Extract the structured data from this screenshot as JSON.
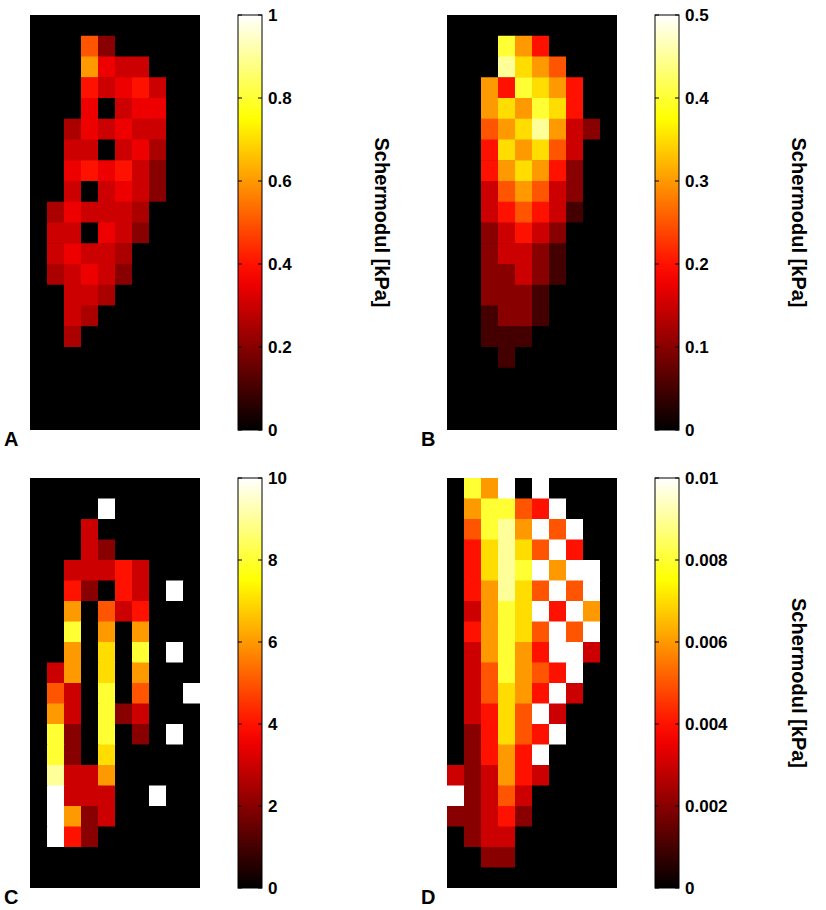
{
  "chart_data": [
    {
      "type": "heatmap",
      "title": "A",
      "colorbar_label": "Schermodul [kPa]",
      "tick_labels": false,
      "color_range": [
        0,
        1
      ],
      "color_ticks": [
        0,
        0.2,
        0.4,
        0.6,
        0.8,
        1
      ],
      "cells": [
        [
          0,
          0,
          0,
          0,
          0,
          0,
          0,
          0,
          0,
          0
        ],
        [
          0,
          0,
          0,
          0.5,
          0.2,
          0,
          0,
          0,
          0,
          0
        ],
        [
          0,
          0,
          0,
          0.6,
          0.35,
          0.3,
          0.3,
          0,
          0,
          0
        ],
        [
          0,
          0,
          0,
          0.4,
          0.3,
          0.35,
          0.4,
          0.3,
          0,
          0
        ],
        [
          0,
          0,
          0,
          0.35,
          0,
          0.3,
          0.35,
          0.35,
          0,
          0
        ],
        [
          0,
          0,
          0.25,
          0.35,
          0.3,
          0.35,
          0.3,
          0.3,
          0,
          0
        ],
        [
          0,
          0,
          0.3,
          0.3,
          0,
          0.3,
          0.35,
          0.25,
          0,
          0
        ],
        [
          0,
          0,
          0.35,
          0.4,
          0.35,
          0.4,
          0.3,
          0.2,
          0,
          0
        ],
        [
          0,
          0,
          0.3,
          0,
          0.3,
          0.35,
          0.3,
          0.2,
          0,
          0
        ],
        [
          0,
          0.25,
          0.35,
          0.3,
          0.3,
          0.3,
          0.25,
          0,
          0,
          0
        ],
        [
          0,
          0.3,
          0.3,
          0,
          0.35,
          0.3,
          0.2,
          0,
          0,
          0
        ],
        [
          0,
          0.3,
          0.35,
          0.3,
          0.3,
          0.25,
          0,
          0,
          0,
          0
        ],
        [
          0,
          0.25,
          0.3,
          0.35,
          0.3,
          0.2,
          0,
          0,
          0,
          0
        ],
        [
          0,
          0,
          0.3,
          0.3,
          0.25,
          0,
          0,
          0,
          0,
          0
        ],
        [
          0,
          0,
          0.3,
          0.25,
          0,
          0,
          0,
          0,
          0,
          0
        ],
        [
          0,
          0,
          0.25,
          0,
          0,
          0,
          0,
          0,
          0,
          0
        ],
        [
          0,
          0,
          0,
          0,
          0,
          0,
          0,
          0,
          0,
          0
        ],
        [
          0,
          0,
          0,
          0,
          0,
          0,
          0,
          0,
          0,
          0
        ],
        [
          0,
          0,
          0,
          0,
          0,
          0,
          0,
          0,
          0,
          0
        ],
        [
          0,
          0,
          0,
          0,
          0,
          0,
          0,
          0,
          0,
          0
        ]
      ]
    },
    {
      "type": "heatmap",
      "title": "B",
      "colorbar_label": "Schermodul [kPa]",
      "tick_labels": false,
      "color_range": [
        0,
        0.5
      ],
      "color_ticks": [
        0,
        0.1,
        0.2,
        0.3,
        0.4,
        0.5
      ],
      "cells": [
        [
          0,
          0,
          0,
          0,
          0,
          0,
          0,
          0,
          0,
          0
        ],
        [
          0,
          0,
          0,
          0.4,
          0.3,
          0.2,
          0,
          0,
          0,
          0
        ],
        [
          0,
          0,
          0,
          0.45,
          0.35,
          0.3,
          0.25,
          0,
          0,
          0
        ],
        [
          0,
          0,
          0.3,
          0.2,
          0.4,
          0.35,
          0.3,
          0.2,
          0,
          0
        ],
        [
          0,
          0,
          0.3,
          0.35,
          0.3,
          0.4,
          0.35,
          0.2,
          0,
          0
        ],
        [
          0,
          0,
          0.25,
          0.3,
          0.35,
          0.45,
          0.3,
          0.15,
          0.1,
          0
        ],
        [
          0,
          0,
          0.2,
          0.35,
          0.3,
          0.35,
          0.25,
          0.15,
          0,
          0
        ],
        [
          0,
          0,
          0.2,
          0.3,
          0.35,
          0.3,
          0.2,
          0.1,
          0,
          0
        ],
        [
          0,
          0,
          0.15,
          0.25,
          0.3,
          0.25,
          0.15,
          0.1,
          0,
          0
        ],
        [
          0,
          0,
          0.15,
          0.2,
          0.25,
          0.2,
          0.15,
          0.05,
          0,
          0
        ],
        [
          0,
          0,
          0.1,
          0.15,
          0.2,
          0.15,
          0.1,
          0,
          0,
          0
        ],
        [
          0,
          0,
          0.1,
          0.15,
          0.15,
          0.1,
          0.05,
          0,
          0,
          0
        ],
        [
          0,
          0,
          0.1,
          0.1,
          0.15,
          0.1,
          0.05,
          0,
          0,
          0
        ],
        [
          0,
          0,
          0.1,
          0.1,
          0.1,
          0.05,
          0,
          0,
          0,
          0
        ],
        [
          0,
          0,
          0.05,
          0.1,
          0.1,
          0.05,
          0,
          0,
          0,
          0
        ],
        [
          0,
          0,
          0.05,
          0.05,
          0.05,
          0,
          0,
          0,
          0,
          0
        ],
        [
          0,
          0,
          0,
          0.05,
          0,
          0,
          0,
          0,
          0,
          0
        ],
        [
          0,
          0,
          0,
          0,
          0,
          0,
          0,
          0,
          0,
          0
        ],
        [
          0,
          0,
          0,
          0,
          0,
          0,
          0,
          0,
          0,
          0
        ],
        [
          0,
          0,
          0,
          0,
          0,
          0,
          0,
          0,
          0,
          0
        ]
      ]
    },
    {
      "type": "heatmap",
      "title": "C",
      "tick_labels": false,
      "color_range": [
        0,
        10
      ],
      "color_ticks": [
        0,
        2,
        4,
        6,
        8,
        10
      ],
      "cells": [
        [
          0,
          0,
          0,
          0,
          0,
          0,
          0,
          0,
          0,
          0
        ],
        [
          0,
          0,
          0,
          0,
          10,
          0,
          0,
          0,
          0,
          0
        ],
        [
          0,
          0,
          0,
          3,
          0,
          0,
          0,
          0,
          0,
          0
        ],
        [
          0,
          0,
          0,
          3,
          2,
          0,
          0,
          0,
          0,
          0
        ],
        [
          0,
          0,
          3,
          3,
          3,
          4,
          3,
          0,
          0,
          0
        ],
        [
          0,
          0,
          4,
          2,
          0,
          4,
          3,
          0,
          10,
          0
        ],
        [
          0,
          0,
          6,
          0,
          5,
          3,
          4,
          0,
          0,
          0
        ],
        [
          0,
          0,
          8,
          0,
          6,
          0,
          6,
          0,
          0,
          0
        ],
        [
          0,
          0,
          6,
          0,
          7,
          0,
          8,
          0,
          10,
          0
        ],
        [
          0,
          3,
          6,
          0,
          7,
          0,
          6,
          0,
          0,
          0
        ],
        [
          0,
          5,
          3,
          0,
          8,
          0,
          5,
          0,
          0,
          10
        ],
        [
          0,
          6,
          3,
          0,
          8,
          2,
          3,
          0,
          0,
          0
        ],
        [
          0,
          8,
          2,
          0,
          8,
          0,
          2,
          0,
          10,
          0
        ],
        [
          0,
          8,
          2,
          0,
          7,
          0,
          0,
          0,
          0,
          0
        ],
        [
          0,
          9,
          3,
          3,
          6,
          0,
          0,
          0,
          0,
          0
        ],
        [
          0,
          10,
          3,
          3,
          3,
          0,
          0,
          10,
          0,
          0
        ],
        [
          0,
          10,
          6,
          2,
          3,
          0,
          0,
          0,
          0,
          0
        ],
        [
          0,
          10,
          4,
          2,
          0,
          0,
          0,
          0,
          0,
          0
        ],
        [
          0,
          0,
          0,
          0,
          0,
          0,
          0,
          0,
          0,
          0
        ],
        [
          0,
          0,
          0,
          0,
          0,
          0,
          0,
          0,
          0,
          0
        ]
      ]
    },
    {
      "type": "heatmap",
      "title": "D",
      "colorbar_label": "Schermodul [kPa]",
      "tick_labels": false,
      "color_range": [
        0,
        0.01
      ],
      "color_ticks": [
        0,
        0.002,
        0.004,
        0.006,
        0.008,
        0.01
      ],
      "cells": [
        [
          0,
          0.008,
          0.006,
          0.01,
          0,
          0.01,
          0,
          0,
          0,
          0
        ],
        [
          0,
          0.006,
          0.008,
          0.008,
          0.005,
          0.004,
          0.01,
          0,
          0,
          0
        ],
        [
          0,
          0.005,
          0.008,
          0.009,
          0.006,
          0.01,
          0.005,
          0.01,
          0,
          0
        ],
        [
          0,
          0.004,
          0.007,
          0.009,
          0.007,
          0.005,
          0.01,
          0.004,
          0,
          0
        ],
        [
          0,
          0.004,
          0.007,
          0.009,
          0.008,
          0.01,
          0.006,
          0.01,
          0.01,
          0
        ],
        [
          0,
          0.004,
          0.006,
          0.009,
          0.007,
          0.005,
          0.01,
          0.005,
          0.01,
          0
        ],
        [
          0,
          0.003,
          0.006,
          0.008,
          0.007,
          0.01,
          0.004,
          0.01,
          0.006,
          0
        ],
        [
          0,
          0.004,
          0.006,
          0.008,
          0.007,
          0.005,
          0.01,
          0.005,
          0.01,
          0
        ],
        [
          0,
          0.003,
          0.006,
          0.008,
          0.006,
          0.004,
          0.01,
          0.01,
          0.003,
          0
        ],
        [
          0,
          0.003,
          0.005,
          0.008,
          0.006,
          0.005,
          0.004,
          0.01,
          0,
          0
        ],
        [
          0,
          0.003,
          0.005,
          0.007,
          0.006,
          0.004,
          0.01,
          0.003,
          0,
          0
        ],
        [
          0,
          0.003,
          0.004,
          0.007,
          0.005,
          0.01,
          0.003,
          0,
          0,
          0
        ],
        [
          0,
          0.002,
          0.004,
          0.007,
          0.005,
          0.004,
          0.01,
          0,
          0,
          0
        ],
        [
          0,
          0.002,
          0.004,
          0.006,
          0.004,
          0.01,
          0,
          0,
          0,
          0
        ],
        [
          0.003,
          0.002,
          0.003,
          0.006,
          0.004,
          0.003,
          0,
          0,
          0,
          0
        ],
        [
          0.01,
          0.002,
          0.003,
          0.005,
          0.003,
          0,
          0,
          0,
          0,
          0
        ],
        [
          0.002,
          0.002,
          0.003,
          0.004,
          0.002,
          0,
          0,
          0,
          0,
          0
        ],
        [
          0,
          0.002,
          0.003,
          0.003,
          0,
          0,
          0,
          0,
          0,
          0
        ],
        [
          0,
          0,
          0.002,
          0.002,
          0,
          0,
          0,
          0,
          0,
          0
        ],
        [
          0,
          0,
          0,
          0,
          0,
          0,
          0,
          0,
          0,
          0
        ]
      ]
    }
  ]
}
